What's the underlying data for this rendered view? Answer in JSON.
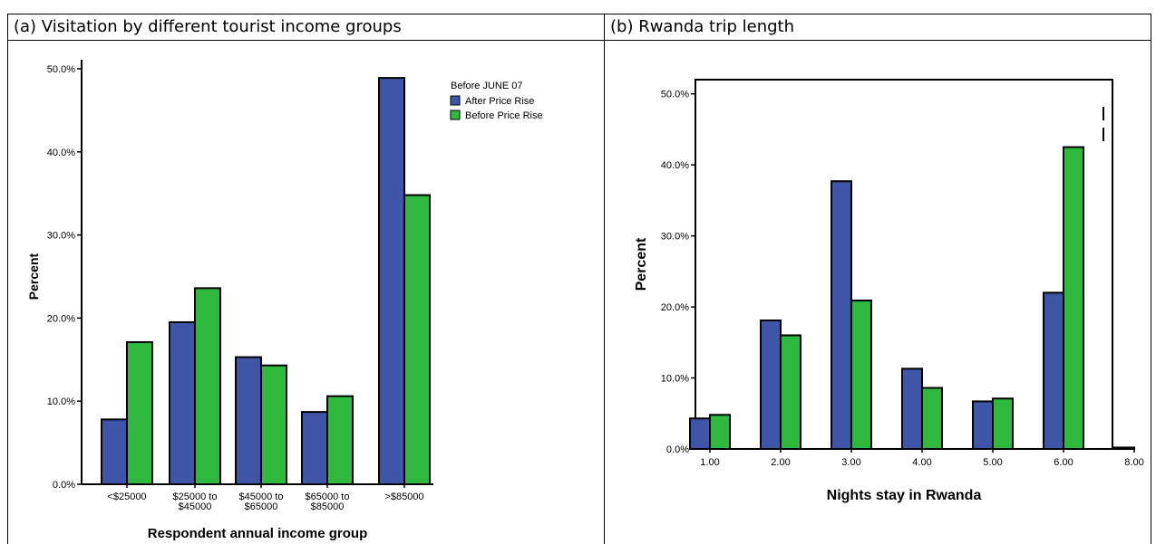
{
  "panels": {
    "a_title": "(a) Visitation by different tourist income groups",
    "b_title": "(b) Rwanda trip length"
  },
  "colors": {
    "after": "#3e55a8",
    "before": "#2fba3f"
  },
  "chart_data": [
    {
      "type": "bar",
      "title": "",
      "xlabel": "Respondent annual income group",
      "ylabel": "Percent",
      "categories": [
        [
          "<$25000"
        ],
        [
          "$25000 to",
          "$45000"
        ],
        [
          "$45000 to",
          "$65000"
        ],
        [
          "$65000 to",
          "$85000"
        ],
        [
          ">$85000"
        ]
      ],
      "series": [
        {
          "name": "After Price Rise",
          "values": [
            7.8,
            19.5,
            15.3,
            8.7,
            48.9
          ]
        },
        {
          "name": "Before Price Rise",
          "values": [
            17.1,
            23.6,
            14.3,
            10.6,
            34.8
          ]
        }
      ],
      "ylim": [
        0,
        50
      ],
      "yticks": [
        "0.0%",
        "10.0%",
        "20.0%",
        "30.0%",
        "40.0%",
        "50.0%"
      ],
      "legend_title": "Before JUNE 07",
      "legend_position": "top-right"
    },
    {
      "type": "bar",
      "title": "",
      "xlabel": "Nights stay in Rwanda",
      "ylabel": "Percent",
      "categories": [
        "1.00",
        "2.00",
        "3.00",
        "4.00",
        "5.00",
        "6.00",
        "8.00"
      ],
      "series": [
        {
          "values": [
            4.3,
            18.1,
            37.7,
            11.3,
            6.7,
            22.0,
            0.2
          ]
        },
        {
          "values": [
            4.8,
            16.0,
            20.9,
            8.6,
            7.1,
            42.5,
            0.0
          ]
        }
      ],
      "ylim": [
        0,
        52
      ],
      "yticks": [
        "0.0%",
        "10.0%",
        "20.0%",
        "30.0%",
        "40.0%",
        "50.0%"
      ],
      "legend_position": "none"
    }
  ]
}
